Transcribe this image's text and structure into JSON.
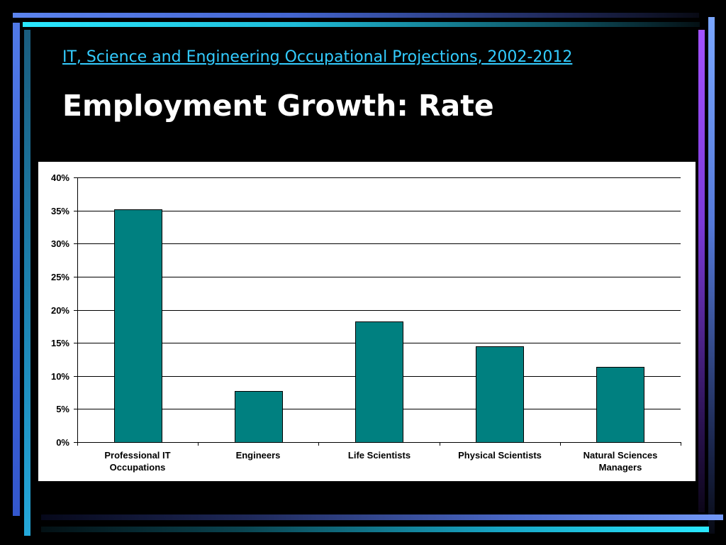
{
  "slide": {
    "subtitle_link": "IT, Science and Engineering Occupational Projections, 2002-2012",
    "title": "Employment Growth: Rate"
  },
  "colors": {
    "background": "#000000",
    "subtitle_link": "#33ccff",
    "title": "#ffffff",
    "chart_background": "#ffffff",
    "bar_fill": "#008080",
    "bar_stroke": "#000000",
    "gridline": "#000000",
    "axis_text": "#000000"
  },
  "chart_data": {
    "type": "bar",
    "categories": [
      "Professional IT Occupations",
      "Engineers",
      "Life Scientists",
      "Physical Scientists",
      "Natural Sciences Managers"
    ],
    "values": [
      35.2,
      7.7,
      18.2,
      14.5,
      11.4
    ],
    "ylim": [
      0,
      40
    ],
    "yticks": [
      0,
      5,
      10,
      15,
      20,
      25,
      30,
      35,
      40
    ],
    "ytick_labels": [
      "0%",
      "5%",
      "10%",
      "15%",
      "20%",
      "25%",
      "30%",
      "35%",
      "40%"
    ],
    "grid": true,
    "legend": "none"
  }
}
